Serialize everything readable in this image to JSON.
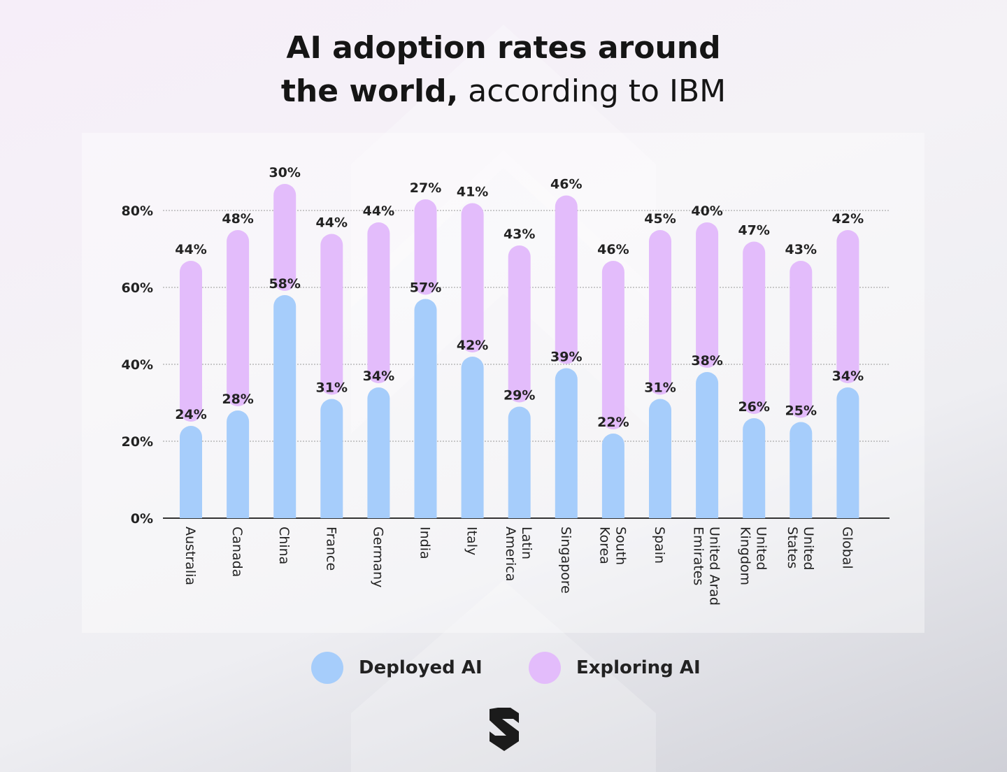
{
  "header": {
    "title_line1": "AI adoption rates around",
    "title_line2_bold": "the world,",
    "title_line2_regular": " according to IBM"
  },
  "legend": {
    "deployed_label": "Deployed AI",
    "exploring_label": "Exploring AI"
  },
  "colors": {
    "deployed": "#a6cdfb",
    "exploring": "#e3bcfb",
    "text": "#222222",
    "axis": "#333333",
    "grid": "#999999"
  },
  "logo": {
    "icon": "shield-s-logo-icon"
  },
  "chart_data": {
    "type": "bar",
    "stacked": true,
    "categories": [
      "Australia",
      "Canada",
      "China",
      "France",
      "Germany",
      "India",
      "Italy",
      "Latin America",
      "Singapore",
      "South Korea",
      "Spain",
      "United Arad Emirates",
      "United Kingdom",
      "United States",
      "Global"
    ],
    "category_lines": [
      [
        "Australia"
      ],
      [
        "Canada"
      ],
      [
        "China"
      ],
      [
        "France"
      ],
      [
        "Germany"
      ],
      [
        "India"
      ],
      [
        "Italy"
      ],
      [
        "Latin",
        "America"
      ],
      [
        "Singapore"
      ],
      [
        "South",
        "Korea"
      ],
      [
        "Spain"
      ],
      [
        "United Arad",
        "Emirates"
      ],
      [
        "United",
        "Kingdom"
      ],
      [
        "United",
        "States"
      ],
      [
        "Global"
      ]
    ],
    "series": [
      {
        "name": "Deployed AI",
        "values": [
          24,
          28,
          58,
          31,
          34,
          57,
          42,
          29,
          39,
          22,
          31,
          38,
          26,
          25,
          34
        ],
        "labels": [
          "24%",
          "28%",
          "58%",
          "31%",
          "34%",
          "57%",
          "42%",
          "29%",
          "39%",
          "22%",
          "31%",
          "38%",
          "26%",
          "25%",
          "34%"
        ]
      },
      {
        "name": "Exploring AI",
        "values": [
          44,
          48,
          30,
          44,
          44,
          27,
          41,
          43,
          46,
          46,
          45,
          40,
          47,
          43,
          42
        ],
        "labels": [
          "44%",
          "48%",
          "30%",
          "44%",
          "44%",
          "27%",
          "41%",
          "43%",
          "46%",
          "46%",
          "45%",
          "40%",
          "47%",
          "43%",
          "42%"
        ]
      }
    ],
    "yticks": [
      0,
      20,
      40,
      60,
      80
    ],
    "ytick_labels": [
      "0%",
      "20%",
      "40%",
      "60%",
      "80%"
    ],
    "ylim": [
      0,
      80
    ],
    "grid": true,
    "legend_position": "bottom-center",
    "title": "AI adoption rates around the world, according to IBM"
  }
}
